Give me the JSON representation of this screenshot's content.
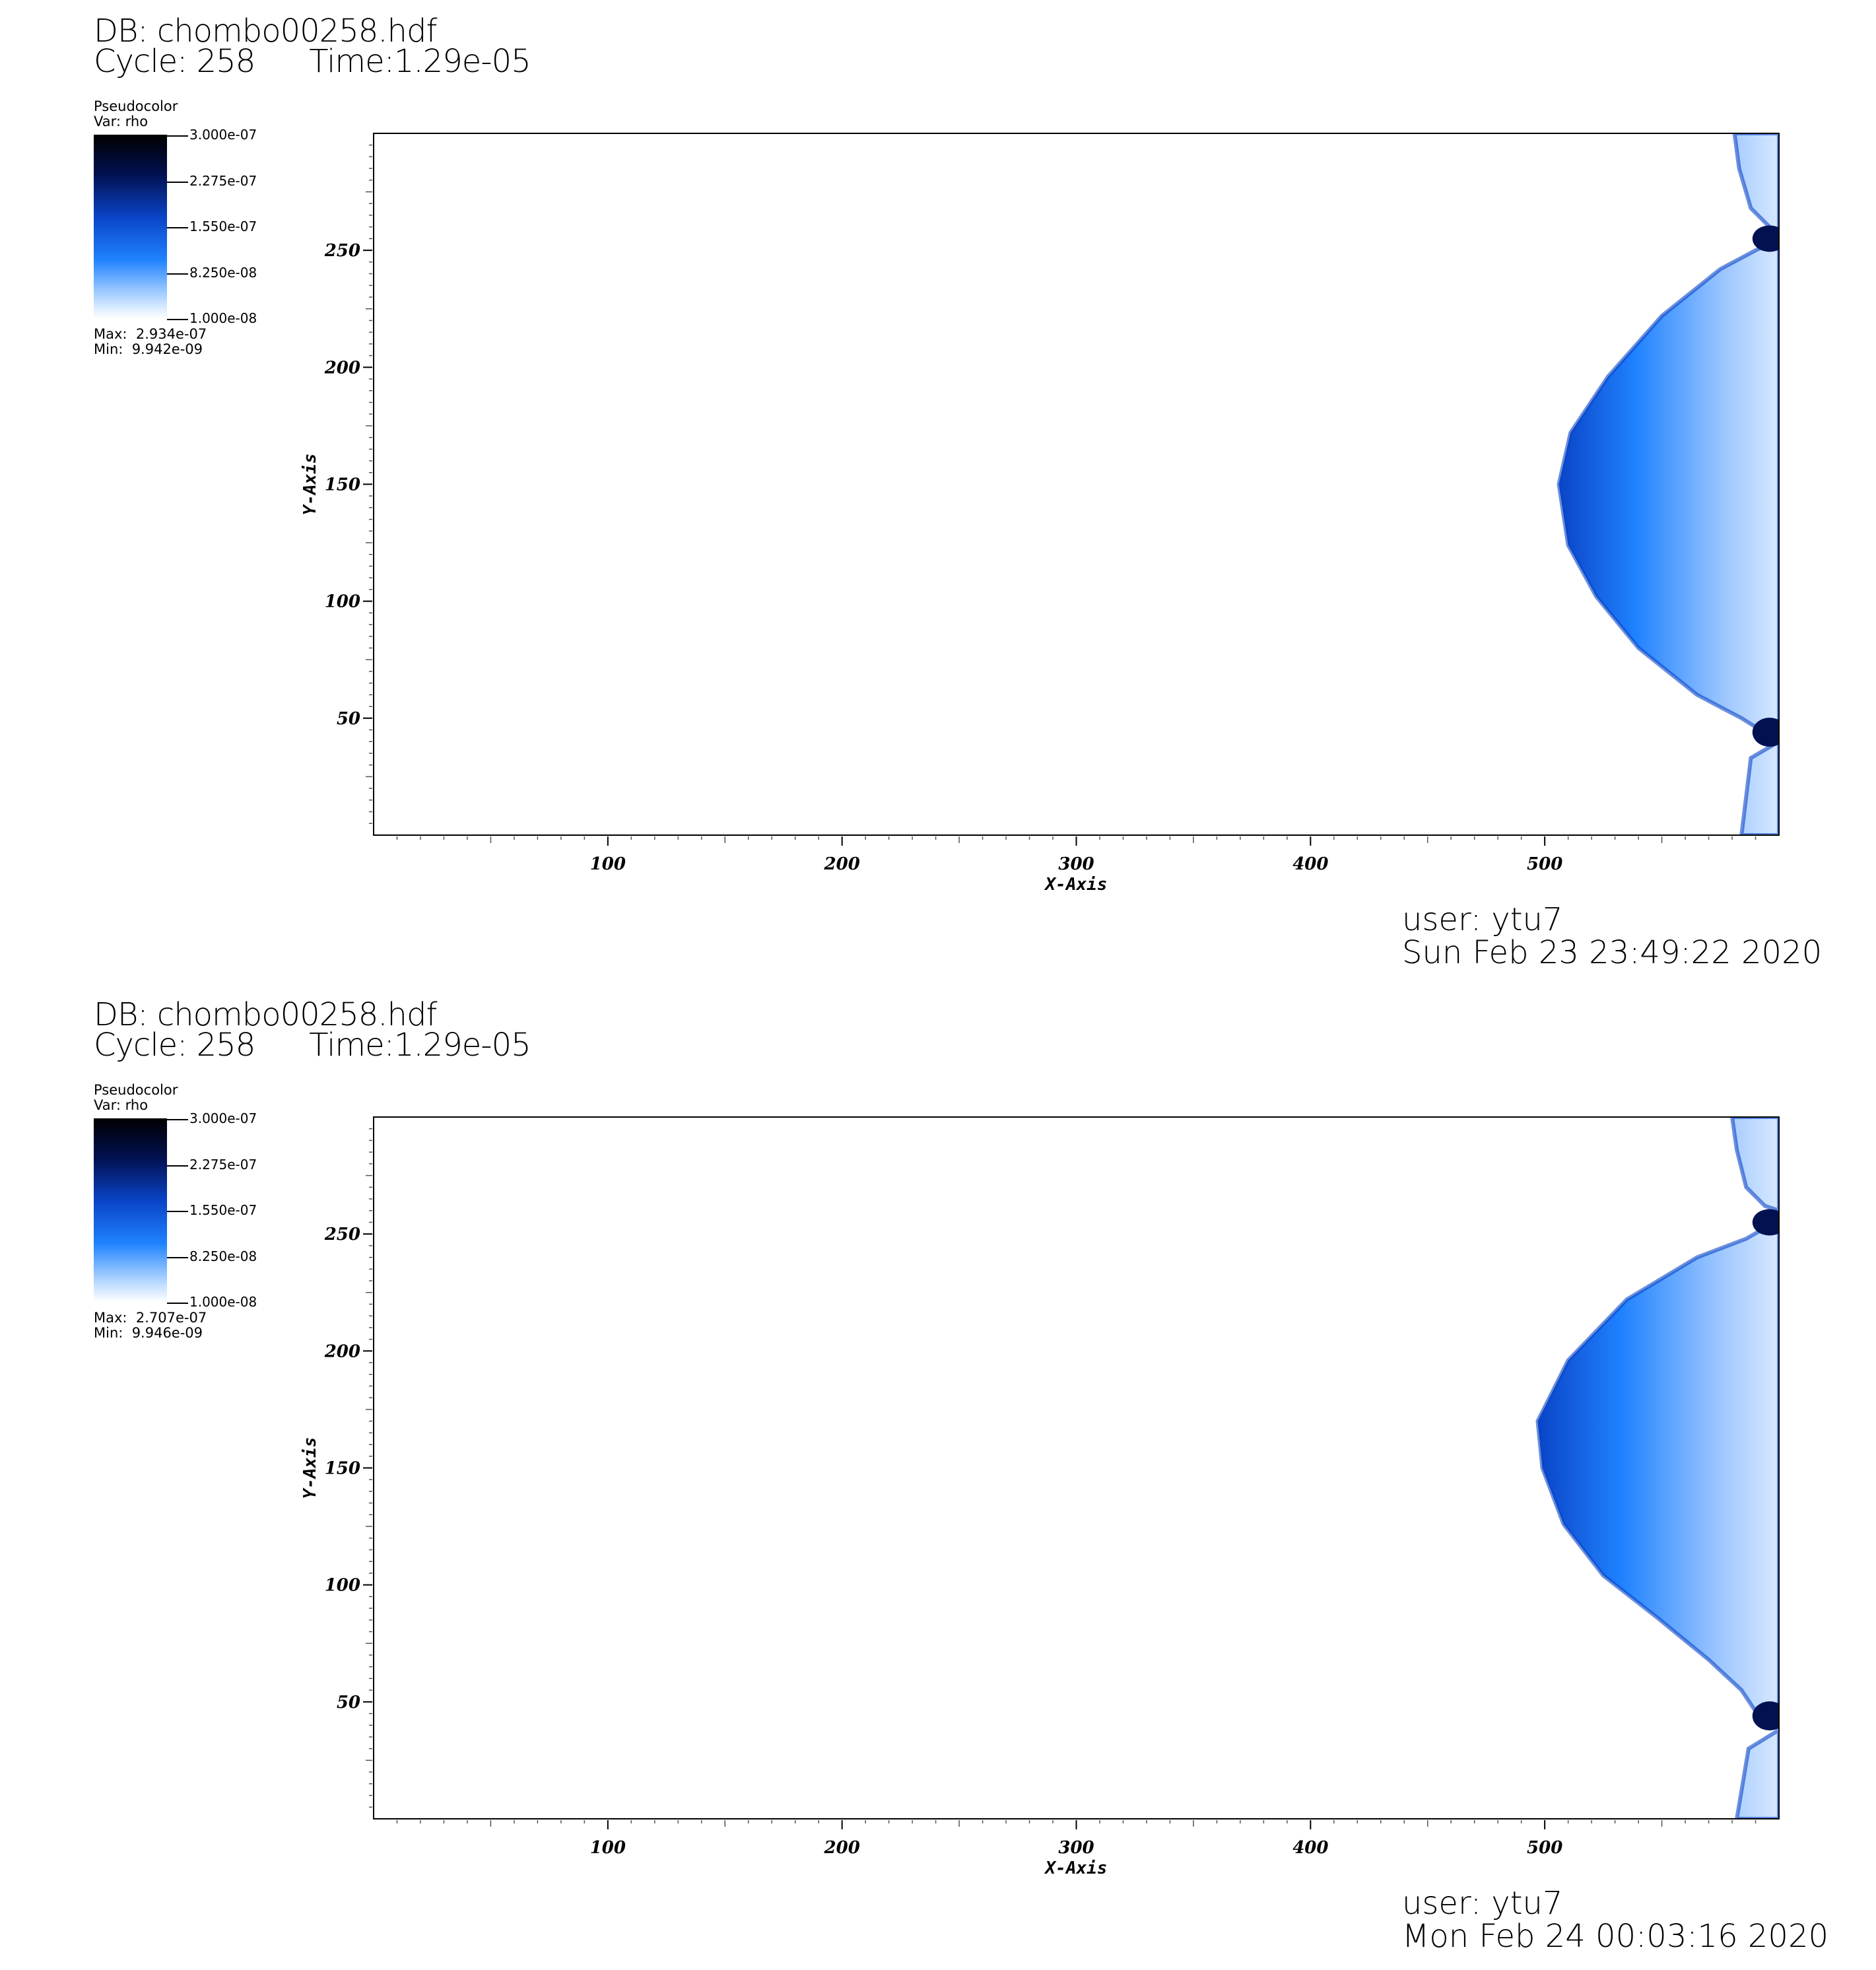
{
  "panels": [
    {
      "db_line": "DB: chombo00258.hdf",
      "cycle_label": "Cycle: 258",
      "time_label": "Time:1.29e-05",
      "legend": {
        "plot_type": "Pseudocolor",
        "var_label": "Var: rho",
        "ticks": [
          "3.000e-07",
          "2.275e-07",
          "1.550e-07",
          "8.250e-08",
          "1.000e-08"
        ],
        "max_label": "Max:  2.934e-07",
        "min_label": "Min:  9.942e-09"
      },
      "user_label": "user: ytu7",
      "date_label": "Sun Feb 23 23:49:22 2020"
    },
    {
      "db_line": "DB: chombo00258.hdf",
      "cycle_label": "Cycle: 258",
      "time_label": "Time:1.29e-05",
      "legend": {
        "plot_type": "Pseudocolor",
        "var_label": "Var: rho",
        "ticks": [
          "3.000e-07",
          "2.275e-07",
          "1.550e-07",
          "8.250e-08",
          "1.000e-08"
        ],
        "max_label": "Max:  2.707e-07",
        "min_label": "Min:  9.946e-09"
      },
      "user_label": "user: ytu7",
      "date_label": "Mon Feb 24 00:03:16 2020"
    }
  ],
  "chart_data": [
    {
      "type": "heatmap",
      "variable": "rho",
      "colormap": [
        "#ffffff",
        "#bcdcff",
        "#1f82ff",
        "#0a44c7",
        "#021152",
        "#000000"
      ],
      "color_range": [
        1e-08,
        3e-07
      ],
      "xlabel": "X-Axis",
      "ylabel": "Y-Axis",
      "xlim": [
        0,
        600
      ],
      "ylim": [
        0,
        300
      ],
      "xticks": [
        100,
        200,
        300,
        400,
        500
      ],
      "yticks": [
        50,
        100,
        150,
        200,
        250
      ],
      "shock_front": {
        "x_data": [
          581,
          583,
          588,
          596,
          600,
          600,
          590,
          575,
          550,
          527,
          511,
          506,
          510,
          522,
          540,
          565,
          584,
          592,
          600,
          600,
          588,
          584
        ],
        "y_data": [
          300,
          285,
          268,
          260,
          258,
          255,
          250,
          242,
          222,
          196,
          172,
          150,
          124,
          102,
          80,
          60,
          50,
          45,
          44,
          40,
          33,
          0
        ]
      }
    },
    {
      "type": "heatmap",
      "variable": "rho",
      "colormap": [
        "#ffffff",
        "#bcdcff",
        "#1f82ff",
        "#0a44c7",
        "#021152",
        "#000000"
      ],
      "color_range": [
        1e-08,
        3e-07
      ],
      "xlabel": "X-Axis",
      "ylabel": "Y-Axis",
      "xlim": [
        0,
        600
      ],
      "ylim": [
        0,
        300
      ],
      "xticks": [
        100,
        200,
        300,
        400,
        500
      ],
      "yticks": [
        50,
        100,
        150,
        200,
        250
      ],
      "shock_front": {
        "x_data": [
          580,
          582,
          586,
          594,
          600,
          600,
          586,
          565,
          535,
          510,
          497,
          499,
          508,
          525,
          548,
          570,
          584,
          590,
          600,
          600,
          587,
          582
        ],
        "y_data": [
          300,
          286,
          270,
          262,
          260,
          256,
          248,
          240,
          222,
          196,
          170,
          150,
          126,
          104,
          86,
          68,
          55,
          46,
          44,
          38,
          30,
          0
        ]
      }
    }
  ]
}
